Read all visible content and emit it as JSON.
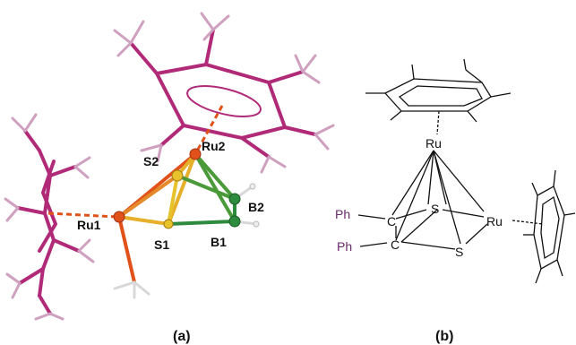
{
  "panel_a": {
    "caption": "(a)",
    "labels": {
      "ru1": "Ru1",
      "ru2": "Ru2",
      "s1": "S1",
      "s2": "S2",
      "b1": "B1",
      "b2": "B2"
    }
  },
  "panel_b": {
    "caption": "(b)",
    "labels": {
      "ru_top": "Ru",
      "ru_right": "Ru",
      "s_upper": "S",
      "s_lower": "S",
      "c_upper": "C",
      "c_lower": "C",
      "ph_upper": "Ph",
      "ph_lower": "Ph"
    }
  },
  "colors": {
    "ligand": "#b02a78",
    "ruthenium": "#e0521a",
    "sulfur": "#e7c22a",
    "boron": "#2e8b3e",
    "hydrogen": "#e8e8e8",
    "phenyl": "#6a2a6a"
  }
}
